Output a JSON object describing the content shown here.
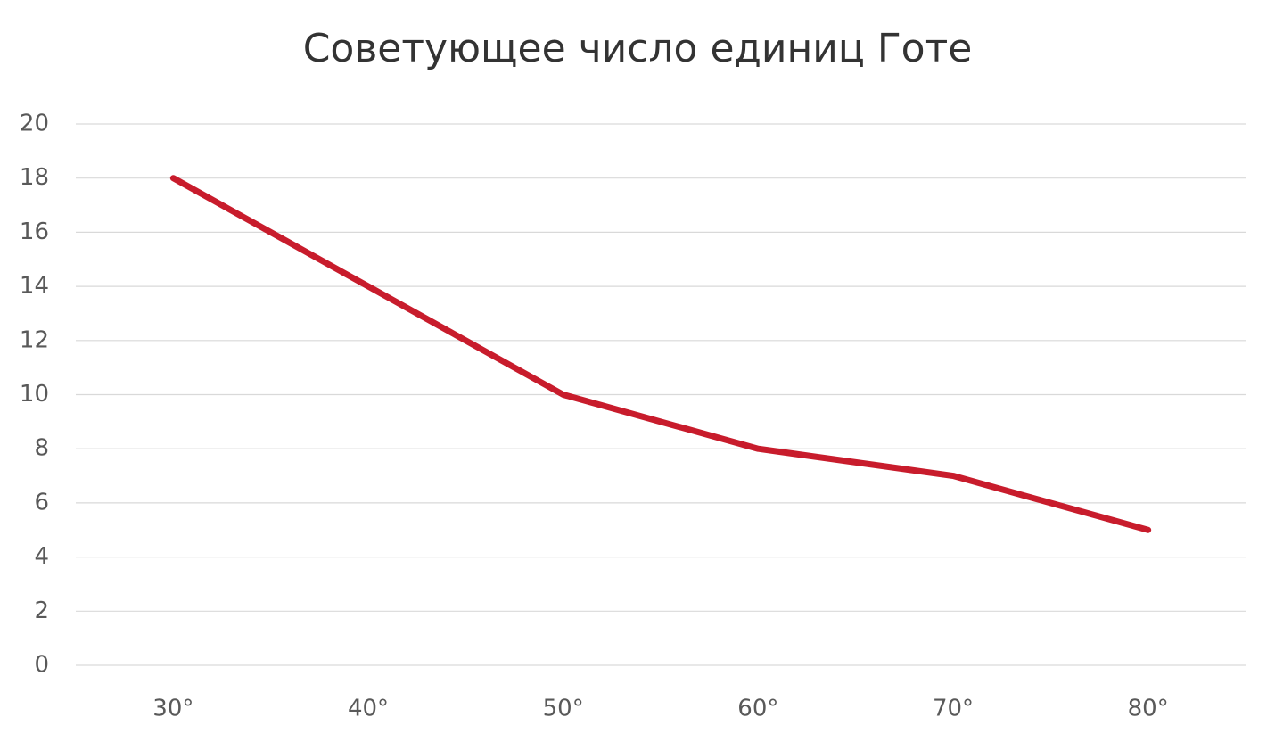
{
  "chart_data": {
    "type": "line",
    "title": "Советующее число единиц Готе",
    "categories": [
      "30°",
      "40°",
      "50°",
      "60°",
      "70°",
      "80°"
    ],
    "series": [
      {
        "color": "#c81c2c",
        "values": [
          18,
          14,
          10,
          8,
          7,
          5
        ]
      }
    ],
    "ylim": [
      0,
      20
    ],
    "yticks": [
      0,
      2,
      4,
      6,
      8,
      10,
      12,
      14,
      16,
      18,
      20
    ],
    "grid": true
  }
}
